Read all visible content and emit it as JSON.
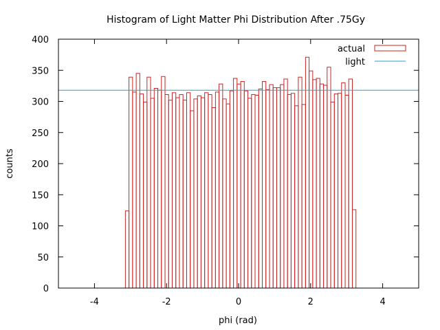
{
  "chart_data": {
    "type": "bar",
    "title": "Histogram of Light Matter Phi Distribution After .75Gy",
    "xlabel": "phi (rad)",
    "ylabel": "counts",
    "xlim": [
      -5,
      5
    ],
    "ylim": [
      0,
      400
    ],
    "xticks": [
      -4,
      -2,
      0,
      2,
      4
    ],
    "yticks": [
      0,
      50,
      100,
      150,
      200,
      250,
      300,
      350,
      400
    ],
    "xtick_labels": [
      "-4",
      "-2",
      "0",
      "2",
      "4"
    ],
    "ytick_labels": [
      "0",
      "50",
      "100",
      "150",
      "200",
      "250",
      "300",
      "350",
      "400"
    ],
    "grid": false,
    "legend_position": "top-right",
    "bin_start": -3.1416,
    "bin_width": 0.1,
    "series": [
      {
        "name": "actual",
        "style": "histogram-outline",
        "color": "#cc2222",
        "values": [
          124,
          339,
          315,
          345,
          312,
          299,
          339,
          305,
          321,
          318,
          340,
          311,
          302,
          314,
          306,
          311,
          302,
          314,
          285,
          304,
          309,
          306,
          314,
          311,
          290,
          315,
          328,
          304,
          296,
          317,
          337,
          328,
          332,
          317,
          305,
          311,
          310,
          320,
          332,
          319,
          327,
          322,
          322,
          327,
          336,
          311,
          313,
          293,
          339,
          295,
          371,
          349,
          335,
          337,
          328,
          326,
          355,
          299,
          312,
          313,
          330,
          310,
          336,
          126
        ]
      },
      {
        "name": "light",
        "style": "line",
        "color": "#2a9ec9",
        "value": 318
      }
    ]
  }
}
